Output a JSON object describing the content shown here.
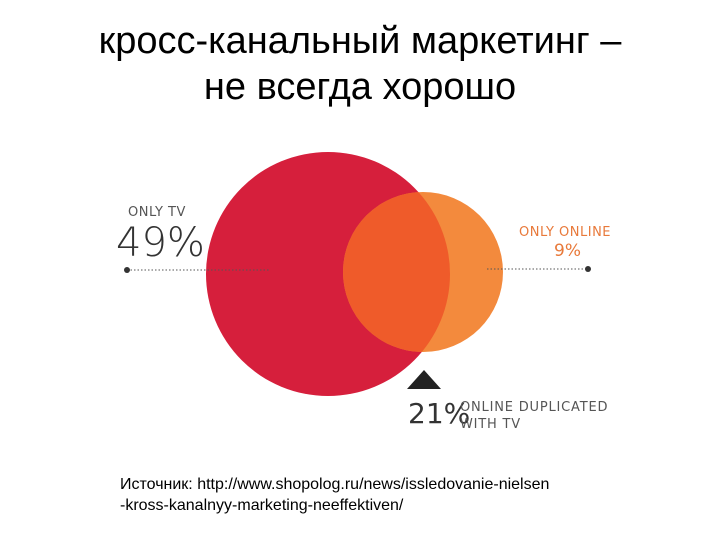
{
  "title": {
    "line1": "кросс-канальный маркетинг –",
    "line2": "не всегда хорошо"
  },
  "diagram": {
    "only_tv": {
      "label": "ONLY TV",
      "value": "49%",
      "color": "#d61f3c"
    },
    "only_online": {
      "label": "ONLY ONLINE",
      "value": "9%",
      "color": "#f38a3d"
    },
    "overlap": {
      "value": "21%",
      "label_line1": "ONLINE DUPLICATED",
      "label_line2": "WITH TV",
      "color": "#ef5b2a"
    }
  },
  "source": {
    "line1": "Источник: http://www.shopolog.ru/news/issledovanie-nielsen",
    "line2": "-kross-kanalnyy-marketing-neeffektiven/"
  }
}
